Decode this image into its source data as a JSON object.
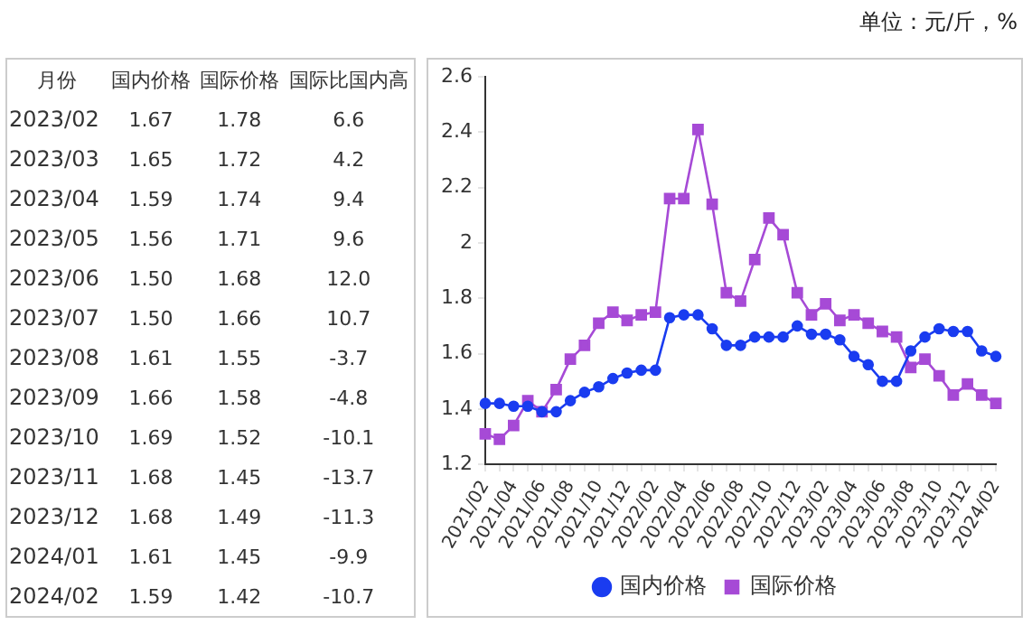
{
  "chart_data": [
    {
      "type": "other",
      "xlabel": "月份",
      "categories": [
        "2023/02",
        "2023/03",
        "2023/04",
        "2023/05",
        "2023/06",
        "2023/07",
        "2023/08",
        "2023/09",
        "2023/10",
        "2023/11",
        "2023/12",
        "2024/01",
        "2024/02"
      ],
      "series": [
        {
          "name": "国内价格",
          "values": [
            1.67,
            1.65,
            1.59,
            1.56,
            1.5,
            1.5,
            1.61,
            1.66,
            1.69,
            1.68,
            1.68,
            1.61,
            1.59
          ],
          "value_labels": [
            "1.67",
            "1.65",
            "1.59",
            "1.56",
            "1.50",
            "1.50",
            "1.61",
            "1.66",
            "1.69",
            "1.68",
            "1.68",
            "1.61",
            "1.59"
          ]
        },
        {
          "name": "国际价格",
          "values": [
            1.78,
            1.72,
            1.74,
            1.71,
            1.68,
            1.66,
            1.55,
            1.58,
            1.52,
            1.45,
            1.49,
            1.45,
            1.42
          ],
          "value_labels": [
            "1.78",
            "1.72",
            "1.74",
            "1.71",
            "1.68",
            "1.66",
            "1.55",
            "1.58",
            "1.52",
            "1.45",
            "1.49",
            "1.45",
            "1.42"
          ]
        },
        {
          "name": "国际比国内高",
          "values": [
            6.6,
            4.2,
            9.4,
            9.6,
            12,
            10.7,
            -3.7,
            -4.8,
            -10.1,
            -13.7,
            -11.3,
            -9.9,
            -10.7
          ],
          "value_labels": [
            "6.6",
            "4.2",
            "9.4",
            "9.6",
            "12.0",
            "10.7",
            "-3.7",
            "-4.8",
            "-10.1",
            "-13.7",
            "-11.3",
            "-9.9",
            "-10.7"
          ]
        }
      ]
    },
    {
      "type": "line",
      "annotations": [
        "单位：元/斤，%"
      ],
      "categories": [
        "2021/02",
        null,
        "2021/04",
        null,
        "2021/06",
        null,
        "2021/08",
        null,
        "2021/10",
        null,
        "2021/12",
        null,
        "2022/02",
        null,
        "2022/04",
        null,
        "2022/06",
        null,
        "2022/08",
        null,
        "2022/10",
        null,
        "2022/12",
        null,
        "2023/02",
        null,
        "2023/04",
        null,
        "2023/06",
        null,
        "2023/08",
        null,
        "2023/10",
        null,
        "2023/12",
        null,
        "2024/02"
      ],
      "ylim": [
        1.2,
        2.6
      ],
      "yticks": [
        1.2,
        1.4,
        1.6,
        1.8,
        2,
        2.2,
        2.4,
        2.6
      ],
      "grid": false,
      "legend": "bottom",
      "series": [
        {
          "name": "国内价格",
          "color": "#1a3cf0",
          "marker": "circle",
          "values": [
            1.42,
            1.42,
            1.41,
            1.41,
            1.39,
            1.39,
            1.43,
            1.46,
            1.48,
            1.51,
            1.53,
            1.54,
            1.54,
            1.73,
            1.74,
            1.74,
            1.69,
            1.63,
            1.63,
            1.66,
            1.66,
            1.66,
            1.7,
            1.67,
            1.67,
            1.65,
            1.59,
            1.56,
            1.5,
            1.5,
            1.61,
            1.66,
            1.69,
            1.68,
            1.68,
            1.61,
            1.59
          ]
        },
        {
          "name": "国际价格",
          "color": "#a64ad6",
          "marker": "square",
          "values": [
            1.31,
            1.29,
            1.34,
            1.43,
            1.39,
            1.47,
            1.58,
            1.63,
            1.71,
            1.75,
            1.72,
            1.74,
            1.75,
            2.16,
            2.16,
            2.41,
            2.14,
            1.82,
            1.79,
            1.94,
            2.09,
            2.03,
            1.82,
            1.74,
            1.78,
            1.72,
            1.74,
            1.71,
            1.68,
            1.66,
            1.55,
            1.58,
            1.52,
            1.45,
            1.49,
            1.45,
            1.42
          ]
        }
      ]
    }
  ]
}
